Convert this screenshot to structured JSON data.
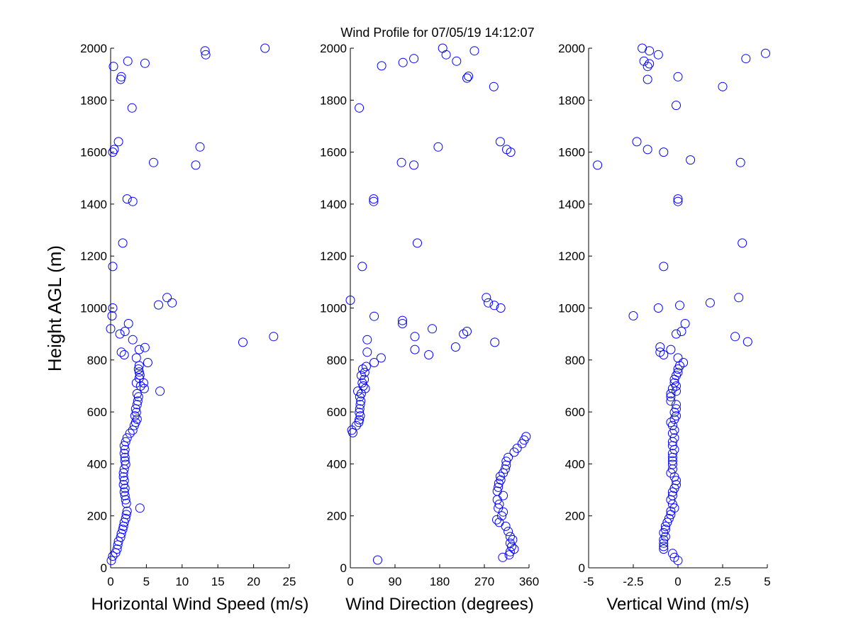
{
  "figure": {
    "title": "Wind Profile for  07/05/19 14:12:07",
    "ylabel": "Height AGL (m)"
  },
  "colors": {
    "marker": "#0000ff",
    "axes": "#000000",
    "background": "#ffffff"
  },
  "chart_data": [
    {
      "type": "scatter",
      "xlabel": "Horizontal Wind Speed (m/s)",
      "ylabel": "Height AGL (m)",
      "xlim": [
        0,
        25
      ],
      "ylim": [
        0,
        2000
      ],
      "xticks": [
        "0",
        "5",
        "10",
        "15",
        "20",
        "25"
      ],
      "yticks": [
        "0",
        "200",
        "400",
        "600",
        "800",
        "1000",
        "1200",
        "1400",
        "1600",
        "1800",
        "2000"
      ],
      "marker": "open-circle",
      "points": [
        [
          0.1,
          28
        ],
        [
          0.3,
          45
        ],
        [
          0.7,
          58
        ],
        [
          0.9,
          72
        ],
        [
          1.0,
          88
        ],
        [
          1.1,
          102
        ],
        [
          1.4,
          118
        ],
        [
          1.5,
          132
        ],
        [
          1.7,
          148
        ],
        [
          1.8,
          160
        ],
        [
          1.9,
          175
        ],
        [
          2.1,
          190
        ],
        [
          2.2,
          205
        ],
        [
          2.3,
          218
        ],
        [
          4.1,
          230
        ],
        [
          2.2,
          248
        ],
        [
          2.1,
          262
        ],
        [
          2.0,
          278
        ],
        [
          1.9,
          292
        ],
        [
          2.0,
          306
        ],
        [
          1.8,
          320
        ],
        [
          1.9,
          336
        ],
        [
          1.8,
          350
        ],
        [
          1.8,
          365
        ],
        [
          1.9,
          380
        ],
        [
          2.1,
          398
        ],
        [
          2.0,
          412
        ],
        [
          2.0,
          425
        ],
        [
          1.9,
          440
        ],
        [
          2.0,
          455
        ],
        [
          1.9,
          470
        ],
        [
          2.1,
          485
        ],
        [
          2.3,
          500
        ],
        [
          2.7,
          518
        ],
        [
          3.1,
          530
        ],
        [
          3.3,
          548
        ],
        [
          3.5,
          560
        ],
        [
          3.7,
          572
        ],
        [
          3.4,
          585
        ],
        [
          3.6,
          598
        ],
        [
          3.5,
          612
        ],
        [
          3.7,
          628
        ],
        [
          3.8,
          642
        ],
        [
          3.9,
          658
        ],
        [
          3.7,
          670
        ],
        [
          6.9,
          680
        ],
        [
          4.7,
          690
        ],
        [
          4.2,
          700
        ],
        [
          3.6,
          712
        ],
        [
          4.6,
          712
        ],
        [
          4.0,
          730
        ],
        [
          4.1,
          742
        ],
        [
          4.0,
          754
        ],
        [
          3.9,
          765
        ],
        [
          4.0,
          778
        ],
        [
          5.2,
          790
        ],
        [
          3.6,
          808
        ],
        [
          1.9,
          820
        ],
        [
          1.5,
          830
        ],
        [
          4.0,
          840
        ],
        [
          4.8,
          848
        ],
        [
          18.5,
          868
        ],
        [
          3.1,
          878
        ],
        [
          22.8,
          890
        ],
        [
          1.3,
          900
        ],
        [
          2.0,
          910
        ],
        [
          0.0,
          920
        ],
        [
          2.5,
          940
        ],
        [
          0.2,
          970
        ],
        [
          0.3,
          1000
        ],
        [
          6.7,
          1012
        ],
        [
          8.6,
          1020
        ],
        [
          7.9,
          1040
        ],
        [
          0.3,
          1160
        ],
        [
          1.7,
          1250
        ],
        [
          3.1,
          1410
        ],
        [
          2.3,
          1420
        ],
        [
          11.9,
          1550
        ],
        [
          6.0,
          1560
        ],
        [
          0.3,
          1600
        ],
        [
          0.5,
          1610
        ],
        [
          12.5,
          1620
        ],
        [
          1.1,
          1640
        ],
        [
          3.0,
          1770
        ],
        [
          1.4,
          1880
        ],
        [
          1.5,
          1890
        ],
        [
          0.4,
          1930
        ],
        [
          4.8,
          1942
        ],
        [
          2.4,
          1950
        ],
        [
          13.3,
          1975
        ],
        [
          13.2,
          1990
        ],
        [
          21.6,
          2000
        ]
      ]
    },
    {
      "type": "scatter",
      "xlabel": "Wind Direction (degrees)",
      "ylabel": "",
      "xlim": [
        0,
        360
      ],
      "ylim": [
        0,
        2000
      ],
      "xticks": [
        "0",
        "90",
        "180",
        "270",
        "360"
      ],
      "yticks": [
        "0",
        "200",
        "400",
        "600",
        "800",
        "1000",
        "1200",
        "1400",
        "1600",
        "1800",
        "2000"
      ],
      "marker": "open-circle",
      "points": [
        [
          55,
          30
        ],
        [
          307,
          40
        ],
        [
          320,
          50
        ],
        [
          322,
          62
        ],
        [
          330,
          72
        ],
        [
          325,
          82
        ],
        [
          322,
          95
        ],
        [
          327,
          108
        ],
        [
          322,
          120
        ],
        [
          318,
          140
        ],
        [
          313,
          160
        ],
        [
          300,
          175
        ],
        [
          295,
          185
        ],
        [
          305,
          200
        ],
        [
          308,
          215
        ],
        [
          298,
          230
        ],
        [
          300,
          245
        ],
        [
          296,
          262
        ],
        [
          308,
          278
        ],
        [
          296,
          295
        ],
        [
          298,
          310
        ],
        [
          299,
          325
        ],
        [
          303,
          338
        ],
        [
          302,
          352
        ],
        [
          308,
          365
        ],
        [
          312,
          380
        ],
        [
          314,
          395
        ],
        [
          314,
          410
        ],
        [
          318,
          425
        ],
        [
          330,
          445
        ],
        [
          336,
          460
        ],
        [
          346,
          478
        ],
        [
          350,
          492
        ],
        [
          354,
          505
        ],
        [
          5,
          520
        ],
        [
          3,
          530
        ],
        [
          12,
          548
        ],
        [
          17,
          560
        ],
        [
          18,
          570
        ],
        [
          20,
          585
        ],
        [
          18,
          598
        ],
        [
          19,
          612
        ],
        [
          20,
          628
        ],
        [
          21,
          642
        ],
        [
          19,
          658
        ],
        [
          22,
          670
        ],
        [
          15,
          680
        ],
        [
          30,
          690
        ],
        [
          26,
          700
        ],
        [
          24,
          712
        ],
        [
          28,
          725
        ],
        [
          22,
          740
        ],
        [
          29,
          752
        ],
        [
          25,
          765
        ],
        [
          32,
          775
        ],
        [
          48,
          790
        ],
        [
          62,
          808
        ],
        [
          34,
          830
        ],
        [
          34,
          878
        ],
        [
          0,
          1030
        ],
        [
          105,
          940
        ],
        [
          105,
          952
        ],
        [
          48,
          968
        ],
        [
          130,
          840
        ],
        [
          130,
          890
        ],
        [
          165,
          920
        ],
        [
          158,
          820
        ],
        [
          212,
          850
        ],
        [
          228,
          900
        ],
        [
          235,
          910
        ],
        [
          291,
          868
        ],
        [
          274,
          1040
        ],
        [
          278,
          1020
        ],
        [
          290,
          1010
        ],
        [
          303,
          1000
        ],
        [
          24,
          1160
        ],
        [
          135,
          1250
        ],
        [
          47,
          1410
        ],
        [
          47,
          1420
        ],
        [
          103,
          1560
        ],
        [
          128,
          1550
        ],
        [
          177,
          1620
        ],
        [
          302,
          1640
        ],
        [
          315,
          1610
        ],
        [
          323,
          1600
        ],
        [
          18,
          1770
        ],
        [
          63,
          1932
        ],
        [
          106,
          1945
        ],
        [
          128,
          1960
        ],
        [
          214,
          1950
        ],
        [
          235,
          1885
        ],
        [
          238,
          1892
        ],
        [
          193,
          1975
        ],
        [
          186,
          2000
        ],
        [
          250,
          1990
        ],
        [
          289,
          1852
        ]
      ]
    },
    {
      "type": "scatter",
      "xlabel": "Vertical Wind (m/s)",
      "ylabel": "",
      "xlim": [
        -5,
        5
      ],
      "ylim": [
        0,
        2000
      ],
      "xticks": [
        "-5",
        "-2.5",
        "0",
        "2.5",
        "5"
      ],
      "yticks": [
        "0",
        "200",
        "400",
        "600",
        "800",
        "1000",
        "1200",
        "1400",
        "1600",
        "1800",
        "2000"
      ],
      "marker": "open-circle",
      "points": [
        [
          0.0,
          28
        ],
        [
          -0.2,
          40
        ],
        [
          -0.3,
          55
        ],
        [
          -0.8,
          72
        ],
        [
          -0.8,
          82
        ],
        [
          -0.8,
          95
        ],
        [
          -0.8,
          108
        ],
        [
          -0.7,
          120
        ],
        [
          -0.8,
          135
        ],
        [
          -0.7,
          148
        ],
        [
          -0.7,
          160
        ],
        [
          -0.6,
          175
        ],
        [
          -0.5,
          190
        ],
        [
          -0.4,
          205
        ],
        [
          -0.4,
          218
        ],
        [
          -0.2,
          230
        ],
        [
          -0.3,
          245
        ],
        [
          -0.4,
          262
        ],
        [
          -0.3,
          278
        ],
        [
          -0.3,
          292
        ],
        [
          -0.2,
          306
        ],
        [
          -0.1,
          320
        ],
        [
          -0.1,
          336
        ],
        [
          -0.2,
          350
        ],
        [
          -0.4,
          365
        ],
        [
          -0.3,
          380
        ],
        [
          -0.3,
          398
        ],
        [
          -0.3,
          412
        ],
        [
          -0.3,
          425
        ],
        [
          -0.3,
          440
        ],
        [
          -0.2,
          455
        ],
        [
          -0.3,
          470
        ],
        [
          -0.3,
          485
        ],
        [
          -0.2,
          500
        ],
        [
          -0.3,
          518
        ],
        [
          -0.2,
          530
        ],
        [
          -0.3,
          548
        ],
        [
          -0.4,
          560
        ],
        [
          -0.2,
          572
        ],
        [
          -0.1,
          585
        ],
        [
          -0.2,
          598
        ],
        [
          -0.1,
          612
        ],
        [
          -0.1,
          628
        ],
        [
          -0.4,
          642
        ],
        [
          -0.4,
          658
        ],
        [
          -0.4,
          670
        ],
        [
          -0.1,
          680
        ],
        [
          -0.3,
          690
        ],
        [
          -0.1,
          700
        ],
        [
          -0.2,
          712
        ],
        [
          -0.2,
          725
        ],
        [
          -0.1,
          740
        ],
        [
          0.0,
          752
        ],
        [
          0.0,
          765
        ],
        [
          0.1,
          778
        ],
        [
          0.3,
          790
        ],
        [
          0.0,
          808
        ],
        [
          -0.8,
          820
        ],
        [
          -1.0,
          830
        ],
        [
          -0.4,
          840
        ],
        [
          -1.0,
          850
        ],
        [
          3.9,
          870
        ],
        [
          3.2,
          890
        ],
        [
          -0.1,
          900
        ],
        [
          0.2,
          910
        ],
        [
          0.4,
          940
        ],
        [
          -2.5,
          970
        ],
        [
          -1.1,
          1000
        ],
        [
          0.1,
          1010
        ],
        [
          1.8,
          1020
        ],
        [
          3.4,
          1040
        ],
        [
          -0.8,
          1160
        ],
        [
          3.6,
          1250
        ],
        [
          0.0,
          1410
        ],
        [
          0.0,
          1420
        ],
        [
          -4.5,
          1550
        ],
        [
          3.5,
          1560
        ],
        [
          0.7,
          1570
        ],
        [
          -0.8,
          1600
        ],
        [
          -1.7,
          1610
        ],
        [
          -2.3,
          1640
        ],
        [
          -0.1,
          1780
        ],
        [
          2.5,
          1852
        ],
        [
          3.8,
          1960
        ],
        [
          4.9,
          1980
        ],
        [
          -1.7,
          1880
        ],
        [
          0.0,
          1890
        ],
        [
          -1.7,
          1930
        ],
        [
          -1.6,
          1940
        ],
        [
          -1.9,
          1950
        ],
        [
          -1.1,
          1975
        ],
        [
          -1.6,
          1990
        ],
        [
          -2.0,
          2000
        ]
      ]
    }
  ]
}
